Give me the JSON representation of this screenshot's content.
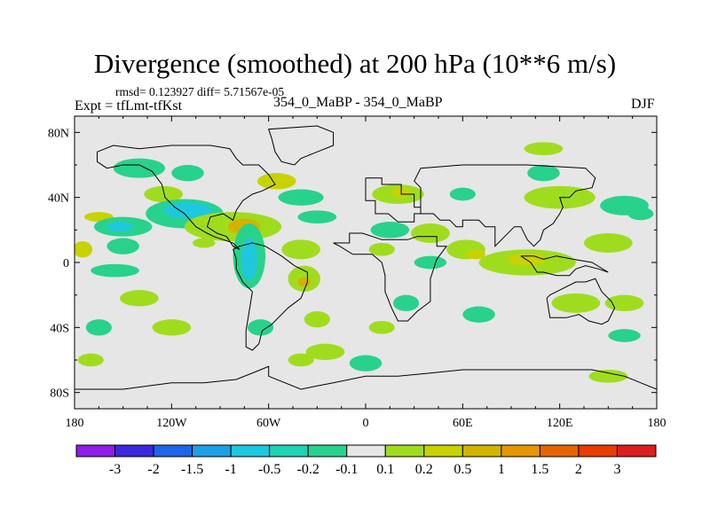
{
  "header": {
    "title": "Divergence (smoothed) at 200 hPa (10**6 m/s)",
    "stats": "rmsd= 0.123927 diff= 5.71567e-05",
    "experiment": "Expt = tfLmt-tfKst",
    "runs": "354_0_MaBP - 354_0_MaBP",
    "season": "DJF"
  },
  "colors": {
    "background": "#ffffff",
    "ocean_land_fill": "#e6e6e6",
    "coastline": "#000000",
    "levels": [
      "#8c1ee6",
      "#3c28dc",
      "#1e64e6",
      "#1ea0e6",
      "#1ec8dc",
      "#1ed2b4",
      "#28d28c",
      "#e6e6e6",
      "#a0dc1e",
      "#c8d200",
      "#d2b400",
      "#e69600",
      "#e66400",
      "#e63c00",
      "#dc1e1e"
    ]
  },
  "chart_data": {
    "type": "heatmap",
    "projection": "cylindrical equidistant",
    "variable": "Divergence (smoothed)",
    "level": "200 hPa",
    "units": "10**6 m/s",
    "x": {
      "range": [
        -180,
        180
      ],
      "ticks": [
        -180,
        -120,
        -60,
        0,
        60,
        120,
        180
      ],
      "tick_labels": [
        "180",
        "120W",
        "60W",
        "0",
        "60E",
        "120E",
        "180"
      ]
    },
    "y": {
      "range": [
        -90,
        90
      ],
      "ticks": [
        80,
        40,
        0,
        -40,
        -80
      ],
      "tick_labels": [
        "80N",
        "40N",
        "0",
        "40S",
        "80S"
      ]
    },
    "colorbar": {
      "levels": [
        -3,
        -2,
        -1.5,
        -1,
        -0.5,
        -0.2,
        -0.1,
        0.1,
        0.2,
        0.5,
        1,
        1.5,
        2,
        3
      ],
      "labels": [
        "-3",
        "-2",
        "-1.5",
        "-1",
        "-0.5",
        "-0.2",
        "-0.1",
        "0.1",
        "0.2",
        "0.5",
        "1",
        "1.5",
        "2",
        "3"
      ]
    },
    "anomaly_regions": [
      {
        "lon": -165,
        "lat": 28,
        "rlon": 9,
        "rlat": 3,
        "level": 9
      },
      {
        "lon": -150,
        "lat": 22,
        "rlon": 18,
        "rlat": 6,
        "level": 6
      },
      {
        "lon": -152,
        "lat": 22,
        "rlon": 8,
        "rlat": 3,
        "level": 4
      },
      {
        "lon": -140,
        "lat": 58,
        "rlon": 16,
        "rlat": 6,
        "level": 6
      },
      {
        "lon": -110,
        "lat": 55,
        "rlon": 10,
        "rlat": 5,
        "level": 6
      },
      {
        "lon": -125,
        "lat": 42,
        "rlon": 12,
        "rlat": 5,
        "level": 8
      },
      {
        "lon": -112,
        "lat": 30,
        "rlon": 24,
        "rlat": 9,
        "level": 6
      },
      {
        "lon": -110,
        "lat": 32,
        "rlon": 15,
        "rlat": 5,
        "level": 4
      },
      {
        "lon": -175,
        "lat": 8,
        "rlon": 6,
        "rlat": 5,
        "level": 9
      },
      {
        "lon": -150,
        "lat": 10,
        "rlon": 10,
        "rlat": 5,
        "level": 6
      },
      {
        "lon": -100,
        "lat": 12,
        "rlon": 7,
        "rlat": 3,
        "level": 8
      },
      {
        "lon": -82,
        "lat": 22,
        "rlon": 30,
        "rlat": 9,
        "level": 8
      },
      {
        "lon": -75,
        "lat": 22,
        "rlon": 10,
        "rlat": 5,
        "level": 10
      },
      {
        "lon": -72,
        "lat": 4,
        "rlon": 10,
        "rlat": 20,
        "level": 6
      },
      {
        "lon": -72,
        "lat": 2,
        "rlon": 5,
        "rlat": 13,
        "level": 4
      },
      {
        "lon": -55,
        "lat": 50,
        "rlon": 12,
        "rlat": 5,
        "level": 9
      },
      {
        "lon": -40,
        "lat": 40,
        "rlon": 14,
        "rlat": 5,
        "level": 6
      },
      {
        "lon": -30,
        "lat": 28,
        "rlon": 12,
        "rlat": 4,
        "level": 6
      },
      {
        "lon": -40,
        "lat": 8,
        "rlon": 12,
        "rlat": 6,
        "level": 8
      },
      {
        "lon": -38,
        "lat": -10,
        "rlon": 10,
        "rlat": 8,
        "level": 8
      },
      {
        "lon": -38,
        "lat": -12,
        "rlon": 4,
        "rlat": 3,
        "level": 10
      },
      {
        "lon": -155,
        "lat": -5,
        "rlon": 15,
        "rlat": 4,
        "level": 6
      },
      {
        "lon": -140,
        "lat": -22,
        "rlon": 12,
        "rlat": 5,
        "level": 8
      },
      {
        "lon": -120,
        "lat": -40,
        "rlon": 12,
        "rlat": 5,
        "level": 8
      },
      {
        "lon": -165,
        "lat": -40,
        "rlon": 8,
        "rlat": 5,
        "level": 6
      },
      {
        "lon": -65,
        "lat": -40,
        "rlon": 8,
        "rlat": 5,
        "level": 6
      },
      {
        "lon": -30,
        "lat": -35,
        "rlon": 8,
        "rlat": 5,
        "level": 8
      },
      {
        "lon": -25,
        "lat": -55,
        "rlon": 12,
        "rlat": 5,
        "level": 8
      },
      {
        "lon": -40,
        "lat": -60,
        "rlon": 8,
        "rlat": 4,
        "level": 8
      },
      {
        "lon": 0,
        "lat": -62,
        "rlon": 10,
        "rlat": 5,
        "level": 6
      },
      {
        "lon": 20,
        "lat": 42,
        "rlon": 16,
        "rlat": 6,
        "level": 8
      },
      {
        "lon": 22,
        "lat": 43,
        "rlon": 6,
        "rlat": 3,
        "level": 9
      },
      {
        "lon": 60,
        "lat": 42,
        "rlon": 8,
        "rlat": 4,
        "level": 6
      },
      {
        "lon": 110,
        "lat": 55,
        "rlon": 10,
        "rlat": 5,
        "level": 6
      },
      {
        "lon": 120,
        "lat": 40,
        "rlon": 22,
        "rlat": 7,
        "level": 8
      },
      {
        "lon": 160,
        "lat": 35,
        "rlon": 15,
        "rlat": 6,
        "level": 6
      },
      {
        "lon": 15,
        "lat": 20,
        "rlon": 12,
        "rlat": 5,
        "level": 6
      },
      {
        "lon": 40,
        "lat": 18,
        "rlon": 12,
        "rlat": 6,
        "level": 8
      },
      {
        "lon": 62,
        "lat": 8,
        "rlon": 12,
        "rlat": 6,
        "level": 8
      },
      {
        "lon": 68,
        "lat": 5,
        "rlon": 6,
        "rlat": 3,
        "level": 9
      },
      {
        "lon": 100,
        "lat": 0,
        "rlon": 30,
        "rlat": 8,
        "level": 8
      },
      {
        "lon": 100,
        "lat": 2,
        "rlon": 12,
        "rlat": 4,
        "level": 9
      },
      {
        "lon": 150,
        "lat": 12,
        "rlon": 15,
        "rlat": 6,
        "level": 8
      },
      {
        "lon": 170,
        "lat": 30,
        "rlon": 8,
        "rlat": 4,
        "level": 6
      },
      {
        "lon": 40,
        "lat": 0,
        "rlon": 10,
        "rlat": 4,
        "level": 6
      },
      {
        "lon": 130,
        "lat": -25,
        "rlon": 15,
        "rlat": 6,
        "level": 8
      },
      {
        "lon": 160,
        "lat": -25,
        "rlon": 12,
        "rlat": 5,
        "level": 8
      },
      {
        "lon": 160,
        "lat": -45,
        "rlon": 10,
        "rlat": 4,
        "level": 6
      },
      {
        "lon": 25,
        "lat": -25,
        "rlon": 8,
        "rlat": 5,
        "level": 6
      },
      {
        "lon": 70,
        "lat": -32,
        "rlon": 10,
        "rlat": 5,
        "level": 6
      },
      {
        "lon": 10,
        "lat": -40,
        "rlon": 8,
        "rlat": 4,
        "level": 8
      },
      {
        "lon": -170,
        "lat": -60,
        "rlon": 8,
        "rlat": 4,
        "level": 8
      },
      {
        "lon": 150,
        "lat": -70,
        "rlon": 12,
        "rlat": 4,
        "level": 8
      },
      {
        "lon": 110,
        "lat": 70,
        "rlon": 12,
        "rlat": 4,
        "level": 8
      },
      {
        "lon": 10,
        "lat": 8,
        "rlon": 8,
        "rlat": 4,
        "level": 8
      }
    ],
    "coastline": [
      [
        [
          0,
          52
        ],
        [
          10,
          52
        ],
        [
          10,
          48
        ],
        [
          22,
          48
        ],
        [
          22,
          42
        ],
        [
          30,
          42
        ],
        [
          30,
          34
        ],
        [
          34,
          34
        ],
        [
          34,
          30
        ],
        [
          30,
          30
        ],
        [
          30,
          25
        ],
        [
          20,
          25
        ],
        [
          14,
          30
        ],
        [
          6,
          30
        ],
        [
          6,
          38
        ],
        [
          0,
          38
        ],
        [
          0,
          52
        ]
      ],
      [
        [
          -20,
          12
        ],
        [
          -10,
          12
        ],
        [
          -10,
          18
        ],
        [
          -2,
          18
        ],
        [
          10,
          14
        ],
        [
          26,
          14
        ],
        [
          32,
          16
        ],
        [
          44,
          16
        ],
        [
          44,
          10
        ],
        [
          50,
          10
        ],
        [
          44,
          2
        ],
        [
          40,
          -10
        ],
        [
          40,
          -24
        ],
        [
          32,
          -30
        ],
        [
          26,
          -36
        ],
        [
          20,
          -36
        ],
        [
          16,
          -28
        ],
        [
          12,
          -18
        ],
        [
          12,
          -8
        ],
        [
          10,
          0
        ],
        [
          4,
          5
        ],
        [
          -8,
          5
        ],
        [
          -16,
          10
        ],
        [
          -20,
          12
        ]
      ],
      [
        [
          34,
          30
        ],
        [
          42,
          30
        ],
        [
          46,
          26
        ],
        [
          52,
          26
        ],
        [
          56,
          22
        ],
        [
          60,
          22
        ],
        [
          60,
          26
        ],
        [
          70,
          26
        ],
        [
          74,
          22
        ],
        [
          80,
          22
        ],
        [
          80,
          10
        ],
        [
          86,
          16
        ],
        [
          92,
          22
        ],
        [
          96,
          22
        ],
        [
          100,
          14
        ],
        [
          104,
          10
        ],
        [
          108,
          14
        ],
        [
          110,
          20
        ],
        [
          116,
          24
        ],
        [
          120,
          30
        ],
        [
          122,
          34
        ],
        [
          120,
          40
        ],
        [
          126,
          40
        ],
        [
          130,
          44
        ],
        [
          140,
          46
        ],
        [
          142,
          52
        ],
        [
          136,
          58
        ],
        [
          100,
          60
        ],
        [
          60,
          60
        ],
        [
          34,
          58
        ],
        [
          30,
          50
        ],
        [
          34,
          46
        ],
        [
          34,
          38
        ],
        [
          34,
          30
        ]
      ],
      [
        [
          112,
          -22
        ],
        [
          114,
          -34
        ],
        [
          124,
          -34
        ],
        [
          132,
          -32
        ],
        [
          138,
          -36
        ],
        [
          146,
          -38
        ],
        [
          150,
          -36
        ],
        [
          154,
          -28
        ],
        [
          152,
          -24
        ],
        [
          146,
          -18
        ],
        [
          142,
          -10
        ],
        [
          136,
          -12
        ],
        [
          130,
          -12
        ],
        [
          122,
          -16
        ],
        [
          114,
          -20
        ],
        [
          112,
          -22
        ]
      ],
      [
        [
          96,
          4
        ],
        [
          102,
          0
        ],
        [
          106,
          -6
        ],
        [
          110,
          -6
        ],
        [
          118,
          -8
        ],
        [
          126,
          -8
        ],
        [
          130,
          -4
        ],
        [
          136,
          -2
        ],
        [
          144,
          -4
        ],
        [
          150,
          -6
        ],
        [
          140,
          0
        ],
        [
          128,
          2
        ],
        [
          118,
          4
        ],
        [
          110,
          2
        ],
        [
          104,
          4
        ],
        [
          96,
          4
        ]
      ],
      [
        [
          -82,
          8
        ],
        [
          -78,
          10
        ],
        [
          -70,
          12
        ],
        [
          -62,
          10
        ],
        [
          -52,
          4
        ],
        [
          -44,
          -2
        ],
        [
          -36,
          -6
        ],
        [
          -36,
          -12
        ],
        [
          -40,
          -22
        ],
        [
          -48,
          -28
        ],
        [
          -54,
          -34
        ],
        [
          -58,
          -38
        ],
        [
          -64,
          -42
        ],
        [
          -66,
          -50
        ],
        [
          -70,
          -54
        ],
        [
          -74,
          -52
        ],
        [
          -74,
          -42
        ],
        [
          -72,
          -30
        ],
        [
          -70,
          -18
        ],
        [
          -76,
          -12
        ],
        [
          -80,
          -4
        ],
        [
          -80,
          2
        ],
        [
          -82,
          8
        ]
      ],
      [
        [
          -78,
          8
        ],
        [
          -82,
          12
        ],
        [
          -88,
          14
        ],
        [
          -94,
          16
        ],
        [
          -98,
          18
        ],
        [
          -105,
          22
        ],
        [
          -112,
          30
        ],
        [
          -118,
          34
        ],
        [
          -124,
          40
        ],
        [
          -126,
          48
        ],
        [
          -132,
          56
        ],
        [
          -140,
          60
        ],
        [
          -150,
          60
        ],
        [
          -160,
          58
        ],
        [
          -166,
          62
        ],
        [
          -166,
          68
        ],
        [
          -156,
          72
        ],
        [
          -140,
          70
        ],
        [
          -120,
          72
        ],
        [
          -96,
          72
        ],
        [
          -84,
          70
        ],
        [
          -80,
          64
        ],
        [
          -76,
          60
        ],
        [
          -66,
          60
        ],
        [
          -60,
          54
        ],
        [
          -56,
          48
        ],
        [
          -64,
          44
        ],
        [
          -70,
          42
        ],
        [
          -76,
          38
        ],
        [
          -80,
          32
        ],
        [
          -82,
          26
        ],
        [
          -88,
          30
        ],
        [
          -96,
          28
        ],
        [
          -98,
          22
        ],
        [
          -92,
          18
        ],
        [
          -86,
          16
        ],
        [
          -82,
          10
        ],
        [
          -78,
          8
        ]
      ],
      [
        [
          -44,
          60
        ],
        [
          -52,
          62
        ],
        [
          -56,
          68
        ],
        [
          -58,
          76
        ],
        [
          -60,
          82
        ],
        [
          -30,
          84
        ],
        [
          -20,
          80
        ],
        [
          -20,
          72
        ],
        [
          -30,
          68
        ],
        [
          -40,
          64
        ],
        [
          -44,
          60
        ]
      ],
      [
        [
          -180,
          -78
        ],
        [
          -150,
          -78
        ],
        [
          -120,
          -74
        ],
        [
          -100,
          -74
        ],
        [
          -80,
          -72
        ],
        [
          -65,
          -66
        ],
        [
          -60,
          -64
        ],
        [
          -60,
          -70
        ],
        [
          -40,
          -78
        ],
        [
          -30,
          -76
        ],
        [
          -20,
          -74
        ],
        [
          0,
          -70
        ],
        [
          20,
          -70
        ],
        [
          40,
          -68
        ],
        [
          60,
          -66
        ],
        [
          80,
          -66
        ],
        [
          100,
          -66
        ],
        [
          120,
          -66
        ],
        [
          140,
          -66
        ],
        [
          160,
          -70
        ],
        [
          170,
          -74
        ],
        [
          180,
          -78
        ]
      ]
    ]
  }
}
